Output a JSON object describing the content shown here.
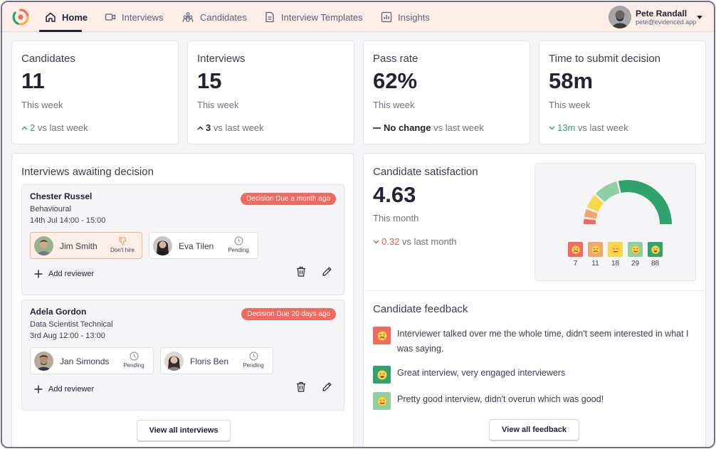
{
  "nav": {
    "items": [
      {
        "label": "Home",
        "icon": "home-icon"
      },
      {
        "label": "Interviews",
        "icon": "video-icon"
      },
      {
        "label": "Candidates",
        "icon": "people-icon"
      },
      {
        "label": "Interview Templates",
        "icon": "document-icon"
      },
      {
        "label": "Insights",
        "icon": "chart-icon"
      }
    ],
    "active": "Home"
  },
  "user": {
    "name": "Pete Randall",
    "email": "pete@evidenced.app"
  },
  "stats": [
    {
      "title": "Candidates",
      "value": "11",
      "period": "This week",
      "change_value": "2",
      "change_suffix": "vs last week",
      "direction": "up"
    },
    {
      "title": "Interviews",
      "value": "15",
      "period": "This week",
      "change_value": "3",
      "change_suffix": "vs last week",
      "direction": "up-neutral"
    },
    {
      "title": "Pass rate",
      "value": "62%",
      "period": "This week",
      "change_value": "No change",
      "change_suffix": "vs last week",
      "direction": "none"
    },
    {
      "title": "Time to submit decision",
      "value": "58m",
      "period": "This week",
      "change_value": "13m",
      "change_suffix": "vs last week",
      "direction": "down-good"
    }
  ],
  "awaiting": {
    "title": "Interviews awaiting decision",
    "interviews": [
      {
        "candidate": "Chester Russel",
        "type": "Behavioural",
        "datetime": "14th Jul 14:00 - 15:00",
        "badge": "Decision Due a month ago",
        "reviewers": [
          {
            "name": "Jim Smith",
            "status": "Don't hire"
          },
          {
            "name": "Eva Tilen",
            "status": "Pending"
          }
        ]
      },
      {
        "candidate": "Adela Gordon",
        "type": "Data Scientist Technical",
        "datetime": "3rd Aug 12:00 - 13:00",
        "badge": "Decision Due 20 days ago",
        "reviewers": [
          {
            "name": "Jan Simonds",
            "status": "Pending"
          },
          {
            "name": "Floris Ben",
            "status": "Pending"
          }
        ]
      }
    ],
    "add_reviewer_label": "Add reviewer",
    "view_all_label": "View all interviews"
  },
  "satisfaction": {
    "title": "Candidate satisfaction",
    "value": "4.63",
    "period": "This month",
    "change_value": "0.32",
    "change_suffix": "vs last month",
    "ratings": [
      {
        "face": "very-sad",
        "count": 7,
        "color": "#f06a5f"
      },
      {
        "face": "sad",
        "count": 11,
        "color": "#f0a66f"
      },
      {
        "face": "neutral",
        "count": 18,
        "color": "#f8d94a"
      },
      {
        "face": "happy",
        "count": 29,
        "color": "#8fcfa2"
      },
      {
        "face": "very-happy",
        "count": 88,
        "color": "#2fa36b"
      }
    ]
  },
  "feedback": {
    "title": "Candidate feedback",
    "items": [
      {
        "text": "Interviewer talked over me the whole time, didn't seem interested in what I was saying.",
        "face": "very-sad",
        "color": "#f06a5f"
      },
      {
        "text": "Great interview, very engaged interviewers",
        "face": "very-happy",
        "color": "#2fa36b"
      },
      {
        "text": "Pretty good interview, didn't overun which was good!",
        "face": "happy",
        "color": "#8fcfa2"
      }
    ],
    "view_all_label": "View all feedback"
  }
}
